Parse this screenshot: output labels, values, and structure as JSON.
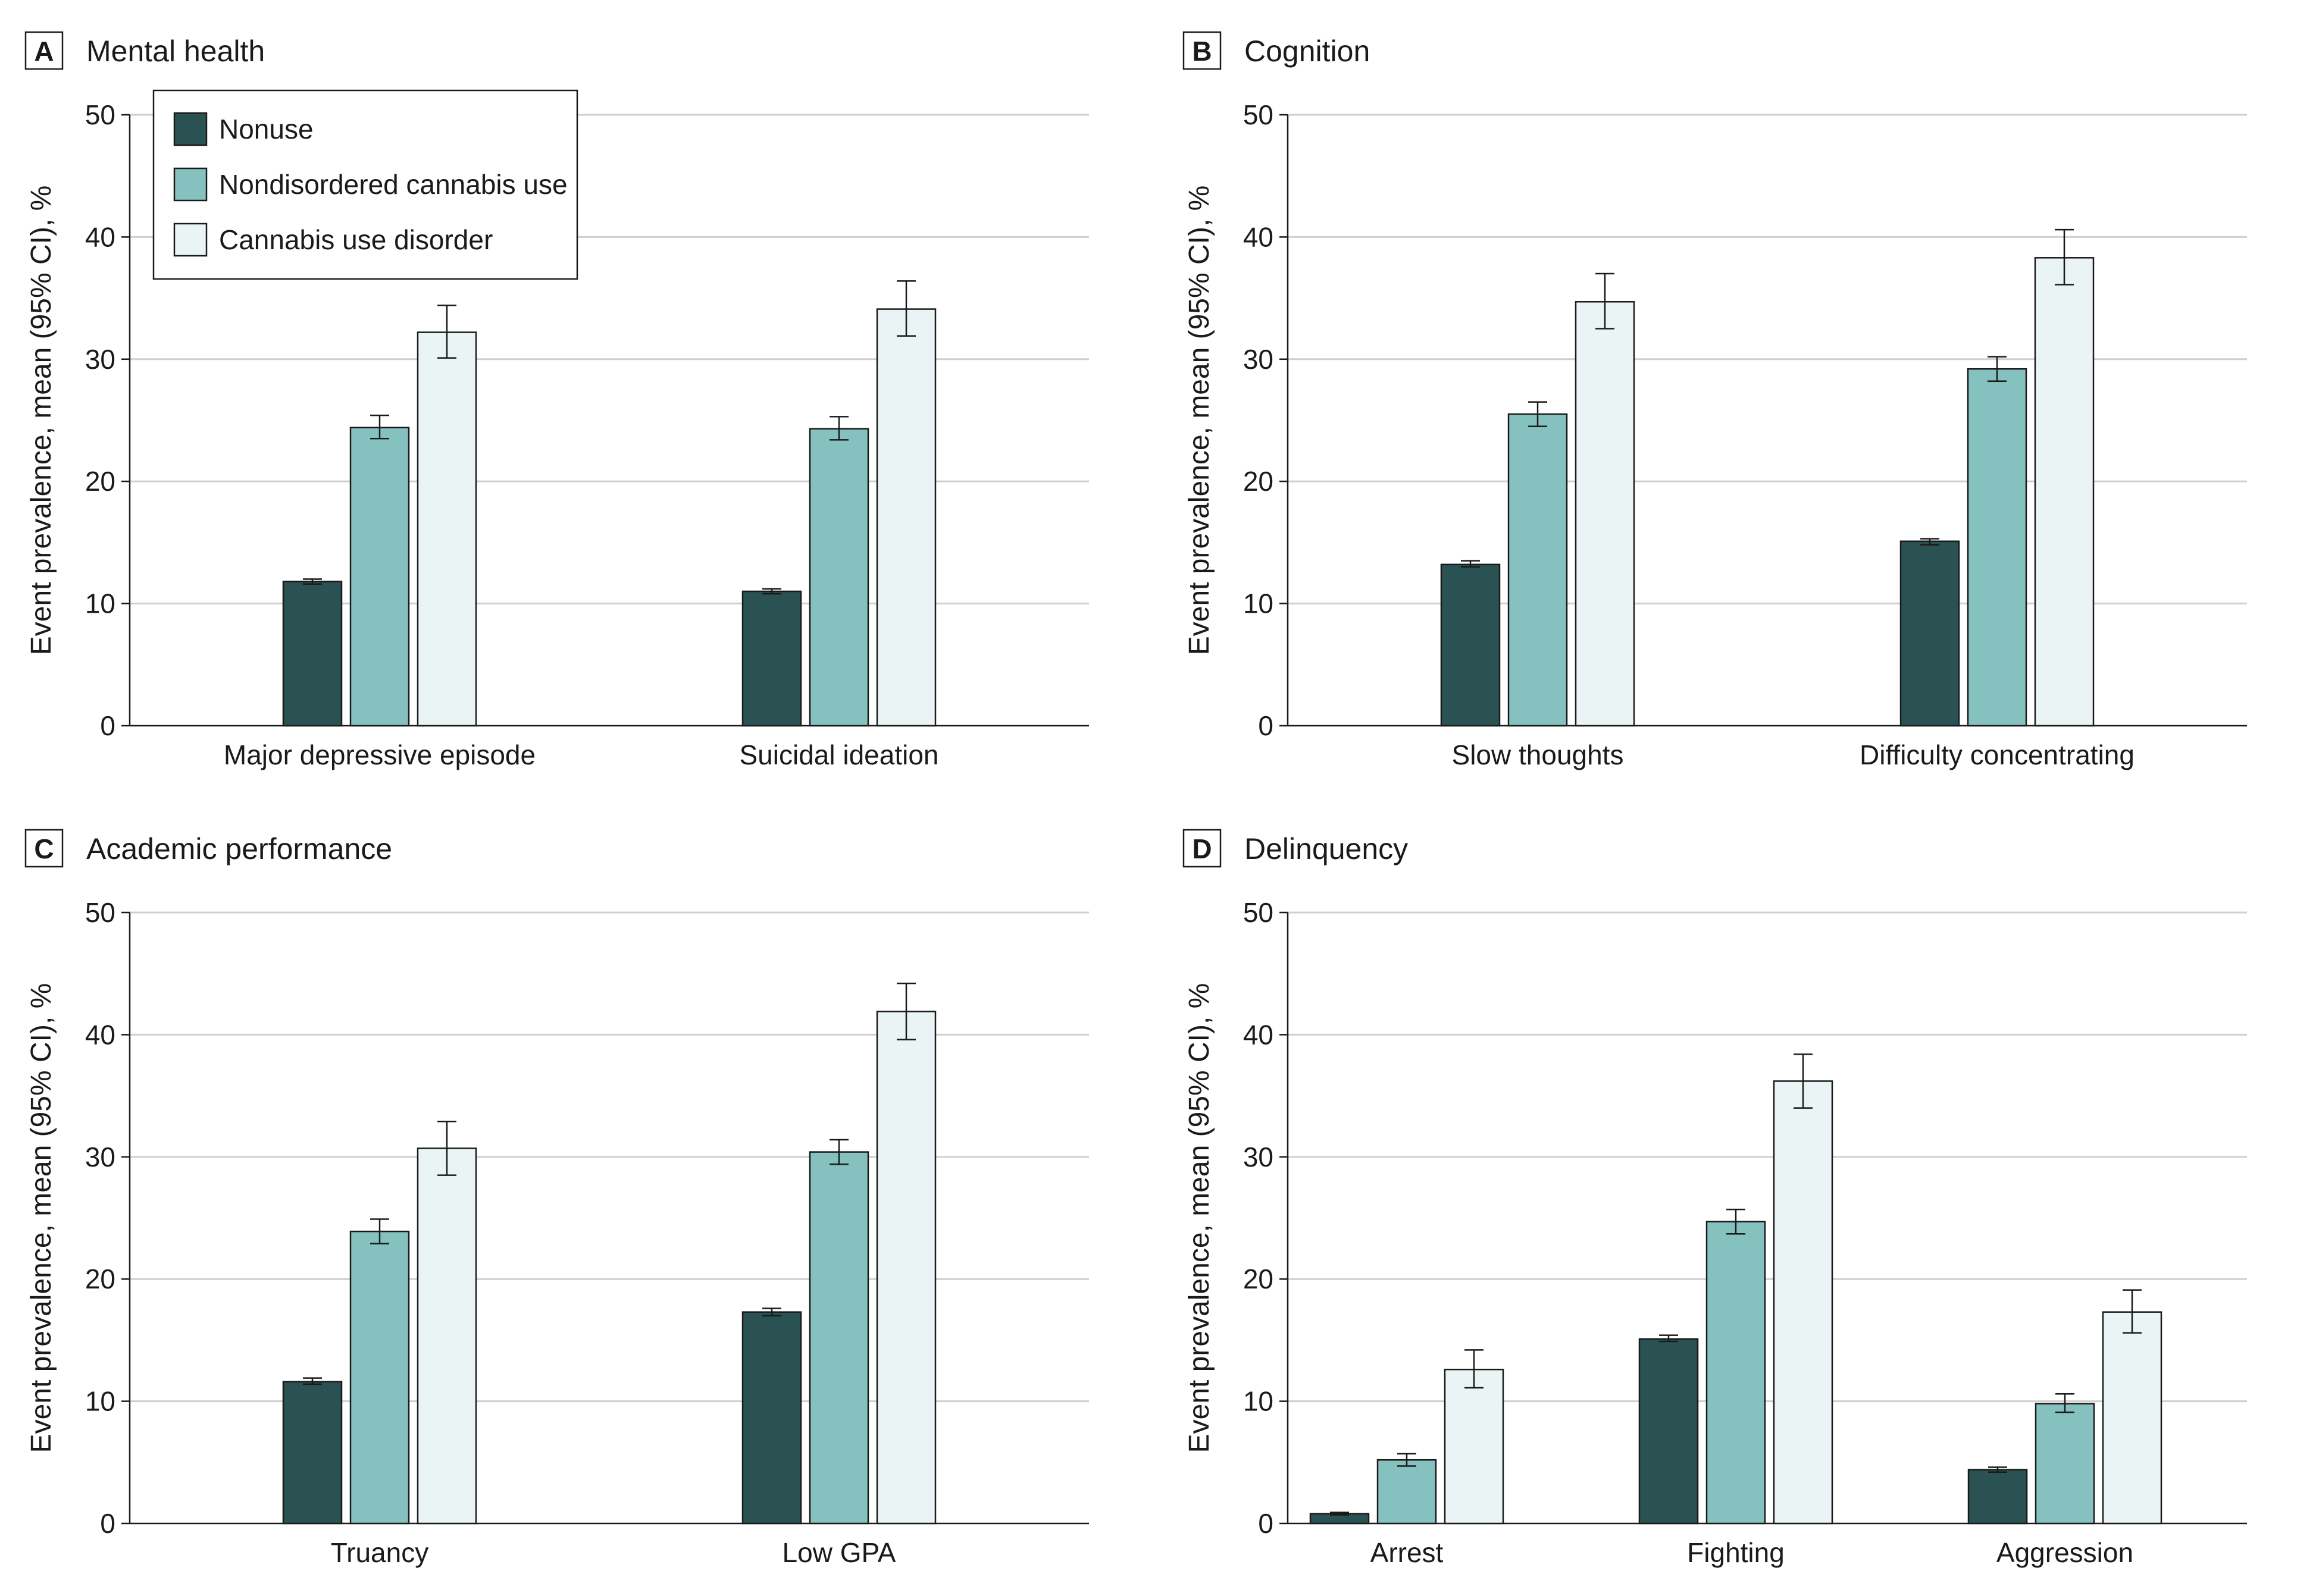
{
  "legend": {
    "items": [
      {
        "label": "Nonuse",
        "color": "#2a5252"
      },
      {
        "label": "Nondisordered cannabis use",
        "color": "#84c1bf"
      },
      {
        "label": "Cannabis use disorder",
        "color": "#eaf4f5"
      }
    ]
  },
  "chart_data": [
    {
      "type": "bar",
      "panel_letter": "A",
      "title": "Mental health",
      "ylabel": "Event prevalence, mean (95% CI), %",
      "xlabel": "",
      "ylim": [
        0,
        50
      ],
      "yticks": [
        0,
        10,
        20,
        30,
        40,
        50
      ],
      "grid": true,
      "legend_position": "top-left",
      "categories": [
        "Major depressive episode",
        "Suicidal ideation"
      ],
      "series": [
        {
          "name": "Nonuse",
          "values": [
            11.8,
            11.0
          ],
          "ci_low": [
            11.6,
            10.8
          ],
          "ci_high": [
            12.0,
            11.2
          ]
        },
        {
          "name": "Nondisordered cannabis use",
          "values": [
            24.4,
            24.3
          ],
          "ci_low": [
            23.5,
            23.4
          ],
          "ci_high": [
            25.4,
            25.3
          ]
        },
        {
          "name": "Cannabis use disorder",
          "values": [
            32.2,
            34.1
          ],
          "ci_low": [
            30.1,
            31.9
          ],
          "ci_high": [
            34.4,
            36.4
          ]
        }
      ]
    },
    {
      "type": "bar",
      "panel_letter": "B",
      "title": "Cognition",
      "ylabel": "Event prevalence, mean (95% CI), %",
      "xlabel": "",
      "ylim": [
        0,
        50
      ],
      "yticks": [
        0,
        10,
        20,
        30,
        40,
        50
      ],
      "grid": true,
      "categories": [
        "Slow thoughts",
        "Difficulty concentrating"
      ],
      "series": [
        {
          "name": "Nonuse",
          "values": [
            13.2,
            15.1
          ],
          "ci_low": [
            13.0,
            14.8
          ],
          "ci_high": [
            13.5,
            15.3
          ]
        },
        {
          "name": "Nondisordered cannabis use",
          "values": [
            25.5,
            29.2
          ],
          "ci_low": [
            24.5,
            28.2
          ],
          "ci_high": [
            26.5,
            30.2
          ]
        },
        {
          "name": "Cannabis use disorder",
          "values": [
            34.7,
            38.3
          ],
          "ci_low": [
            32.5,
            36.1
          ],
          "ci_high": [
            37.0,
            40.6
          ]
        }
      ]
    },
    {
      "type": "bar",
      "panel_letter": "C",
      "title": "Academic performance",
      "ylabel": "Event prevalence, mean (95% CI), %",
      "xlabel": "",
      "ylim": [
        0,
        50
      ],
      "yticks": [
        0,
        10,
        20,
        30,
        40,
        50
      ],
      "grid": true,
      "categories": [
        "Truancy",
        "Low GPA"
      ],
      "series": [
        {
          "name": "Nonuse",
          "values": [
            11.6,
            17.3
          ],
          "ci_low": [
            11.4,
            17.0
          ],
          "ci_high": [
            11.9,
            17.6
          ]
        },
        {
          "name": "Nondisordered cannabis use",
          "values": [
            23.9,
            30.4
          ],
          "ci_low": [
            22.9,
            29.4
          ],
          "ci_high": [
            24.9,
            31.4
          ]
        },
        {
          "name": "Cannabis use disorder",
          "values": [
            30.7,
            41.9
          ],
          "ci_low": [
            28.5,
            39.6
          ],
          "ci_high": [
            32.9,
            44.2
          ]
        }
      ]
    },
    {
      "type": "bar",
      "panel_letter": "D",
      "title": "Delinquency",
      "ylabel": "Event prevalence, mean (95% CI), %",
      "xlabel": "",
      "ylim": [
        0,
        50
      ],
      "yticks": [
        0,
        10,
        20,
        30,
        40,
        50
      ],
      "grid": true,
      "categories": [
        "Arrest",
        "Fighting",
        "Aggression"
      ],
      "series": [
        {
          "name": "Nonuse",
          "values": [
            0.8,
            15.1,
            4.4
          ],
          "ci_low": [
            0.7,
            14.9,
            4.2
          ],
          "ci_high": [
            0.9,
            15.4,
            4.6
          ]
        },
        {
          "name": "Nondisordered cannabis use",
          "values": [
            5.2,
            24.7,
            9.8
          ],
          "ci_low": [
            4.7,
            23.7,
            9.1
          ],
          "ci_high": [
            5.7,
            25.7,
            10.6
          ]
        },
        {
          "name": "Cannabis use disorder",
          "values": [
            12.6,
            36.2,
            17.3
          ],
          "ci_low": [
            11.1,
            34.0,
            15.6
          ],
          "ci_high": [
            14.2,
            38.4,
            19.1
          ]
        }
      ]
    }
  ]
}
